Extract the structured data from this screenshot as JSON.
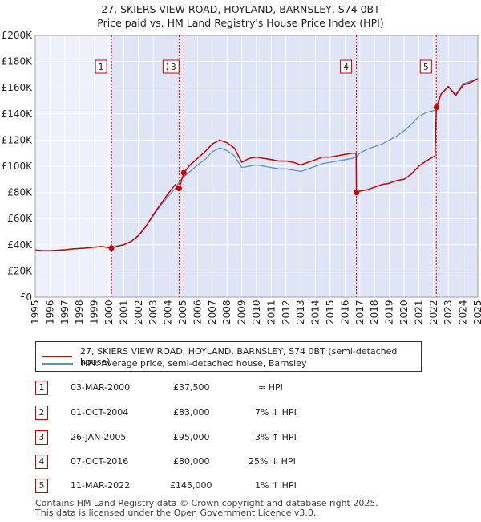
{
  "title": "27, SKIERS VIEW ROAD, HOYLAND, BARNSLEY, S74 0BT",
  "subtitle": "Price paid vs. HM Land Registry's House Price Index (HPI)",
  "chart_data": {
    "type": "line",
    "xlim": [
      1995,
      2025
    ],
    "ylim": [
      0,
      200000
    ],
    "x_ticks": [
      "1995",
      "1996",
      "1997",
      "1998",
      "1999",
      "2000",
      "2001",
      "2002",
      "2003",
      "2004",
      "2005",
      "2006",
      "2007",
      "2008",
      "2009",
      "2010",
      "2011",
      "2012",
      "2013",
      "2014",
      "2015",
      "2016",
      "2017",
      "2018",
      "2019",
      "2020",
      "2021",
      "2022",
      "2023",
      "2024",
      "2025"
    ],
    "y_ticks": [
      {
        "value": 0,
        "label": "£0"
      },
      {
        "value": 20000,
        "label": "£20K"
      },
      {
        "value": 40000,
        "label": "£40K"
      },
      {
        "value": 60000,
        "label": "£60K"
      },
      {
        "value": 80000,
        "label": "£80K"
      },
      {
        "value": 100000,
        "label": "£100K"
      },
      {
        "value": 120000,
        "label": "£120K"
      },
      {
        "value": 140000,
        "label": "£140K"
      },
      {
        "value": 160000,
        "label": "£160K"
      },
      {
        "value": 180000,
        "label": "£180K"
      },
      {
        "value": 200000,
        "label": "£200K"
      }
    ],
    "series": [
      {
        "name": "27, SKIERS VIEW ROAD, HOYLAND, BARNSLEY, S74 0BT (semi-detached house)",
        "color": "#cc0000",
        "x": [
          1995,
          1995.5,
          1996,
          1996.5,
          1997,
          1997.5,
          1998,
          1998.5,
          1999,
          1999.5,
          2000.17,
          2000.5,
          2001,
          2001.5,
          2002,
          2002.5,
          2003,
          2003.5,
          2004,
          2004.5,
          2004.75,
          2005.07,
          2005.5,
          2006,
          2006.5,
          2007,
          2007.5,
          2008,
          2008.5,
          2009,
          2009.5,
          2010,
          2010.5,
          2011,
          2011.5,
          2012,
          2012.5,
          2013,
          2013.5,
          2014,
          2014.5,
          2015,
          2015.5,
          2016,
          2016.5,
          2016.75,
          2016.77,
          2017,
          2017.5,
          2018,
          2018.5,
          2019,
          2019.5,
          2020,
          2020.5,
          2021,
          2021.5,
          2022.1,
          2022.19,
          2022.5,
          2023,
          2023.5,
          2024,
          2024.5,
          2025
        ],
        "y": [
          36000,
          35500,
          35500,
          35800,
          36200,
          36800,
          37200,
          37600,
          38200,
          38700,
          37500,
          38800,
          40000,
          42500,
          47000,
          54000,
          63000,
          71000,
          79000,
          86000,
          83000,
          95000,
          101000,
          106000,
          111000,
          117000,
          120000,
          118000,
          114000,
          103000,
          106000,
          107000,
          106000,
          105000,
          104000,
          104000,
          103000,
          101000,
          103000,
          105000,
          107000,
          107000,
          108000,
          109000,
          110000,
          110000,
          80000,
          81000,
          82000,
          84000,
          86000,
          87000,
          89000,
          90000,
          94000,
          100000,
          104000,
          108000,
          145000,
          155000,
          161000,
          154000,
          162000,
          164000,
          167000
        ]
      },
      {
        "name": "HPI: Average price, semi-detached house, Barnsley",
        "color": "#5b8fd0",
        "x": [
          1995,
          1995.5,
          1996,
          1996.5,
          1997,
          1997.5,
          1998,
          1998.5,
          1999,
          1999.5,
          2000.17,
          2000.5,
          2001,
          2001.5,
          2002,
          2002.5,
          2003,
          2003.5,
          2004,
          2004.5,
          2004.75,
          2005.07,
          2005.5,
          2006,
          2006.5,
          2007,
          2007.5,
          2008,
          2008.5,
          2009,
          2009.5,
          2010,
          2010.5,
          2011,
          2011.5,
          2012,
          2012.5,
          2013,
          2013.5,
          2014,
          2014.5,
          2015,
          2015.5,
          2016,
          2016.5,
          2016.77,
          2017,
          2017.5,
          2018,
          2018.5,
          2019,
          2019.5,
          2020,
          2020.5,
          2021,
          2021.5,
          2022.19,
          2022.5,
          2023,
          2023.5,
          2024,
          2024.5,
          2025
        ],
        "y": [
          36000,
          35500,
          35500,
          35800,
          36200,
          36800,
          37200,
          37600,
          38200,
          38700,
          37800,
          39000,
          40200,
          42500,
          47000,
          54000,
          62000,
          70000,
          77000,
          83000,
          88000,
          92000,
          96000,
          101000,
          105000,
          111000,
          114000,
          112000,
          108000,
          99000,
          100000,
          101000,
          100000,
          99000,
          98000,
          98000,
          97000,
          96000,
          98000,
          100000,
          102000,
          103000,
          104000,
          105000,
          106000,
          107000,
          110000,
          113000,
          115000,
          117000,
          120000,
          123000,
          127000,
          132000,
          138000,
          141000,
          143000,
          155000,
          161000,
          155000,
          163000,
          165000,
          167000
        ]
      }
    ],
    "transactions": [
      {
        "num": "1",
        "x": 2000.17,
        "date": "03-MAR-2000",
        "price": 37500,
        "price_label": "£37,500",
        "hpi": "≈ HPI"
      },
      {
        "num": "2",
        "x": 2004.75,
        "date": "01-OCT-2004",
        "price": 83000,
        "price_label": "£83,000",
        "hpi": "7% ↓ HPI"
      },
      {
        "num": "3",
        "x": 2005.07,
        "date": "26-JAN-2005",
        "price": 95000,
        "price_label": "£95,000",
        "hpi": "3% ↑ HPI"
      },
      {
        "num": "4",
        "x": 2016.77,
        "date": "07-OCT-2016",
        "price": 80000,
        "price_label": "£80,000",
        "hpi": "25% ↓ HPI"
      },
      {
        "num": "5",
        "x": 2022.19,
        "date": "11-MAR-2022",
        "price": 145000,
        "price_label": "£145,000",
        "hpi": "1% ↑ HPI"
      }
    ]
  },
  "footer": {
    "line1": "Contains HM Land Registry data © Crown copyright and database right 2025.",
    "line2": "This data is licensed under the Open Government Licence v3.0."
  }
}
